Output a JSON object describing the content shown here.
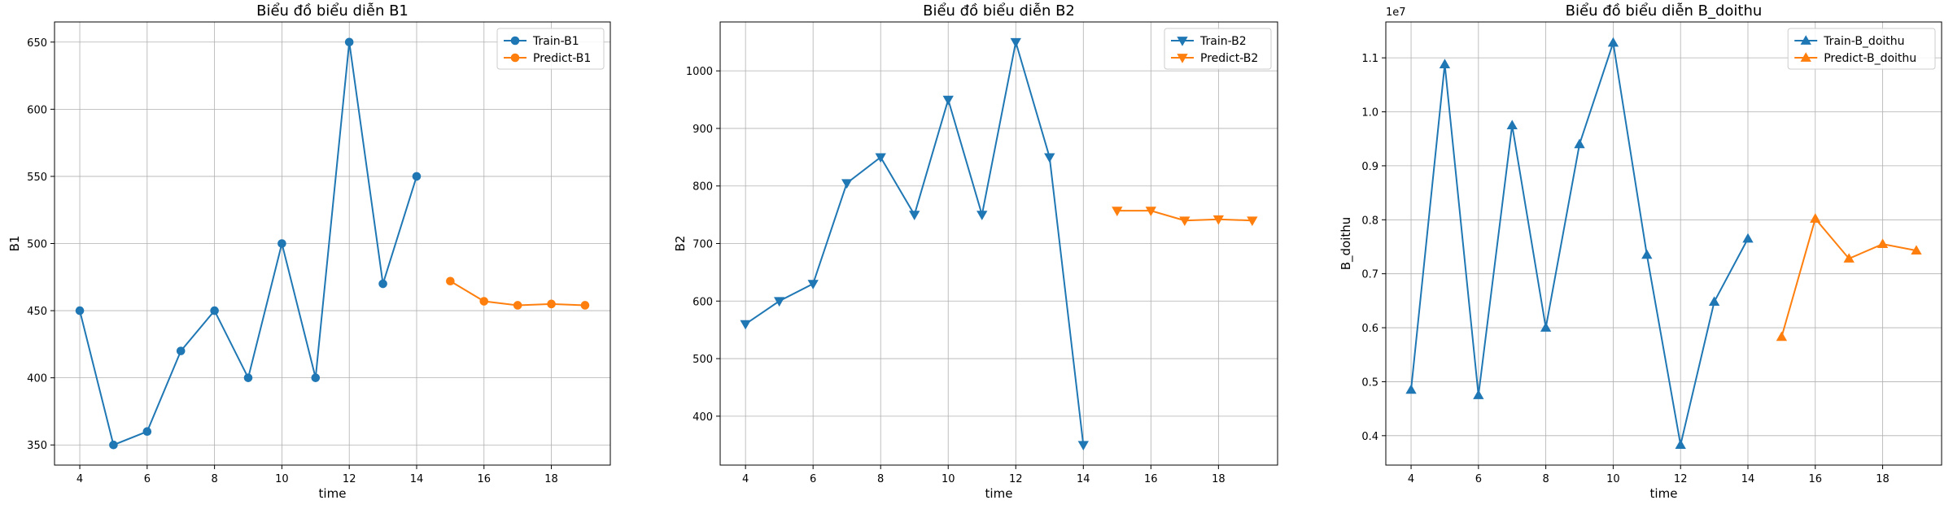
{
  "chart_data": [
    {
      "type": "line",
      "title": "Biểu đồ biểu diễn B1",
      "xlabel": "time",
      "ylabel": "B1",
      "marker": "circle",
      "xlim": [
        3.25,
        19.75
      ],
      "ylim": [
        335,
        665
      ],
      "xticks": [
        4,
        6,
        8,
        10,
        12,
        14,
        16,
        18
      ],
      "yticks": [
        350,
        400,
        450,
        500,
        550,
        600,
        650
      ],
      "grid": true,
      "legend_position": "top-right",
      "series": [
        {
          "name": "Train-B1",
          "color": "#1f77b4",
          "x": [
            4,
            5,
            6,
            7,
            8,
            9,
            10,
            11,
            12,
            13,
            14
          ],
          "values": [
            450,
            350,
            360,
            420,
            450,
            400,
            500,
            400,
            650,
            470,
            550
          ]
        },
        {
          "name": "Predict-B1",
          "color": "#ff7f0e",
          "x": [
            15,
            16,
            17,
            18,
            19
          ],
          "values": [
            472,
            457,
            454,
            455,
            454
          ]
        }
      ]
    },
    {
      "type": "line",
      "title": "Biểu đồ biểu diễn B2",
      "xlabel": "time",
      "ylabel": "B2",
      "marker": "triangle-down",
      "xlim": [
        3.25,
        19.75
      ],
      "ylim": [
        315,
        1085
      ],
      "xticks": [
        4,
        6,
        8,
        10,
        12,
        14,
        16,
        18
      ],
      "yticks": [
        400,
        500,
        600,
        700,
        800,
        900,
        1000
      ],
      "grid": true,
      "legend_position": "top-right",
      "series": [
        {
          "name": "Train-B2",
          "color": "#1f77b4",
          "x": [
            4,
            5,
            6,
            7,
            8,
            9,
            10,
            11,
            12,
            13,
            14
          ],
          "values": [
            560,
            600,
            630,
            805,
            850,
            750,
            950,
            750,
            1050,
            850,
            350
          ]
        },
        {
          "name": "Predict-B2",
          "color": "#ff7f0e",
          "x": [
            15,
            16,
            17,
            18,
            19
          ],
          "values": [
            757,
            757,
            740,
            742,
            740
          ]
        }
      ]
    },
    {
      "type": "line",
      "title": "Biểu đồ biểu diễn B_doithu",
      "xlabel": "time",
      "ylabel": "B_doithu",
      "y_scale_label": "1e7",
      "marker": "triangle-up",
      "xlim": [
        3.25,
        19.75
      ],
      "ylim": [
        0.3455,
        1.1665
      ],
      "xticks": [
        4,
        6,
        8,
        10,
        12,
        14,
        16,
        18
      ],
      "yticks": [
        0.4,
        0.5,
        0.6,
        0.7,
        0.8,
        0.9,
        1.0,
        1.1
      ],
      "grid": true,
      "legend_position": "top-right",
      "series": [
        {
          "name": "Train-B_doithu",
          "color": "#1f77b4",
          "x": [
            4,
            5,
            6,
            7,
            8,
            9,
            10,
            11,
            12,
            13,
            14
          ],
          "values": [
            0.485,
            1.088,
            0.475,
            0.975,
            0.6,
            0.94,
            1.128,
            0.735,
            0.383,
            0.648,
            0.765
          ]
        },
        {
          "name": "Predict-B_doithu",
          "color": "#ff7f0e",
          "x": [
            15,
            16,
            17,
            18,
            19
          ],
          "values": [
            0.583,
            0.802,
            0.728,
            0.755,
            0.743
          ]
        }
      ]
    }
  ]
}
